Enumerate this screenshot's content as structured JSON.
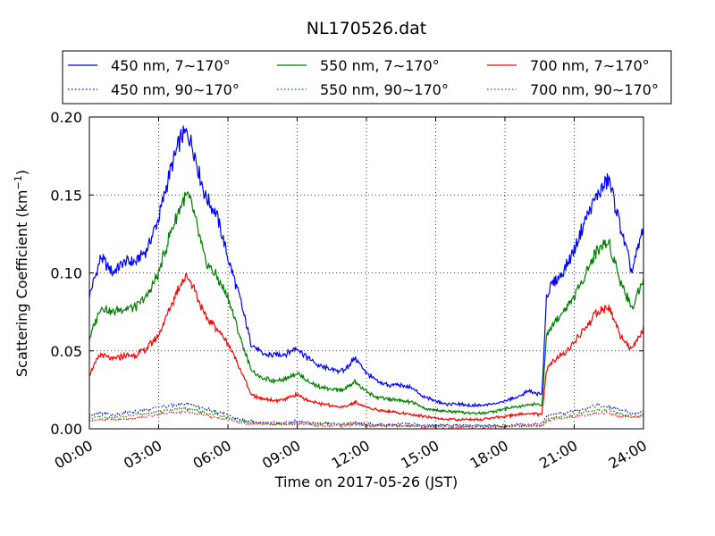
{
  "chart_data": {
    "type": "line",
    "title": "NL170526.dat",
    "xlabel": "Time on 2017-05-26 (JST)",
    "ylabel": "Scattering Coefficient (km",
    "ylabel_sup": "−1",
    "ylabel_close": ")",
    "xlim": [
      "00:00",
      "24:00"
    ],
    "ylim": [
      0.0,
      0.2
    ],
    "xticks": [
      "00:00",
      "03:00",
      "06:00",
      "09:00",
      "12:00",
      "15:00",
      "18:00",
      "21:00",
      "24:00"
    ],
    "yticks": [
      "0.00",
      "0.05",
      "0.10",
      "0.15",
      "0.20"
    ],
    "grid": true,
    "legend_position": "top (above plot, 3 columns)",
    "hours": [
      0.0,
      0.5,
      1.0,
      1.5,
      2.0,
      2.5,
      3.0,
      3.5,
      4.0,
      4.25,
      4.5,
      5.0,
      5.5,
      6.0,
      6.5,
      7.0,
      7.5,
      8.0,
      8.5,
      9.0,
      9.5,
      10.0,
      10.5,
      11.0,
      11.5,
      12.0,
      12.5,
      13.0,
      13.5,
      14.0,
      14.5,
      15.0,
      15.5,
      16.0,
      16.5,
      17.0,
      17.5,
      18.0,
      18.5,
      19.0,
      19.6,
      19.8,
      20.0,
      20.5,
      21.0,
      21.5,
      22.0,
      22.5,
      23.0,
      23.5,
      24.0
    ],
    "series": [
      {
        "name": "450 nm, 7∼170°",
        "color": "#0000ff",
        "style": "solid",
        "values": [
          0.085,
          0.11,
          0.1,
          0.107,
          0.107,
          0.115,
          0.135,
          0.165,
          0.188,
          0.19,
          0.18,
          0.15,
          0.138,
          0.11,
          0.085,
          0.055,
          0.048,
          0.047,
          0.048,
          0.052,
          0.045,
          0.04,
          0.038,
          0.037,
          0.045,
          0.036,
          0.03,
          0.028,
          0.028,
          0.026,
          0.02,
          0.018,
          0.016,
          0.016,
          0.015,
          0.015,
          0.016,
          0.018,
          0.02,
          0.024,
          0.022,
          0.085,
          0.092,
          0.1,
          0.115,
          0.135,
          0.15,
          0.16,
          0.13,
          0.1,
          0.13
        ]
      },
      {
        "name": "450 nm, 90∼170°",
        "color": "#0000ff",
        "style": "dotted",
        "values": [
          0.009,
          0.01,
          0.009,
          0.01,
          0.011,
          0.012,
          0.014,
          0.015,
          0.016,
          0.016,
          0.015,
          0.013,
          0.011,
          0.009,
          0.006,
          0.005,
          0.004,
          0.004,
          0.004,
          0.005,
          0.004,
          0.004,
          0.003,
          0.003,
          0.004,
          0.003,
          0.003,
          0.003,
          0.003,
          0.003,
          0.002,
          0.002,
          0.002,
          0.002,
          0.002,
          0.002,
          0.002,
          0.002,
          0.003,
          0.003,
          0.003,
          0.008,
          0.009,
          0.01,
          0.011,
          0.013,
          0.015,
          0.014,
          0.012,
          0.01,
          0.011
        ]
      },
      {
        "name": "550 nm, 7∼170°",
        "color": "#008000",
        "style": "solid",
        "values": [
          0.058,
          0.078,
          0.075,
          0.077,
          0.078,
          0.085,
          0.1,
          0.125,
          0.145,
          0.15,
          0.14,
          0.108,
          0.098,
          0.085,
          0.06,
          0.038,
          0.032,
          0.031,
          0.032,
          0.036,
          0.03,
          0.027,
          0.025,
          0.025,
          0.03,
          0.024,
          0.02,
          0.019,
          0.018,
          0.017,
          0.013,
          0.012,
          0.011,
          0.011,
          0.01,
          0.01,
          0.011,
          0.013,
          0.014,
          0.016,
          0.015,
          0.06,
          0.065,
          0.075,
          0.085,
          0.1,
          0.115,
          0.12,
          0.095,
          0.077,
          0.098
        ]
      },
      {
        "name": "550 nm, 90∼170°",
        "color": "#008000",
        "style": "dotted",
        "values": [
          0.007,
          0.008,
          0.007,
          0.008,
          0.009,
          0.01,
          0.011,
          0.012,
          0.013,
          0.013,
          0.012,
          0.01,
          0.009,
          0.007,
          0.005,
          0.004,
          0.003,
          0.003,
          0.003,
          0.004,
          0.003,
          0.003,
          0.003,
          0.003,
          0.003,
          0.003,
          0.002,
          0.002,
          0.002,
          0.002,
          0.002,
          0.002,
          0.002,
          0.002,
          0.002,
          0.002,
          0.002,
          0.002,
          0.002,
          0.002,
          0.002,
          0.006,
          0.007,
          0.008,
          0.009,
          0.011,
          0.012,
          0.012,
          0.01,
          0.008,
          0.009
        ]
      },
      {
        "name": "700 nm, 7∼170°",
        "color": "#ff0000",
        "style": "solid",
        "values": [
          0.035,
          0.048,
          0.044,
          0.047,
          0.047,
          0.052,
          0.06,
          0.078,
          0.095,
          0.098,
          0.092,
          0.072,
          0.065,
          0.055,
          0.04,
          0.022,
          0.019,
          0.018,
          0.019,
          0.022,
          0.018,
          0.016,
          0.015,
          0.014,
          0.017,
          0.014,
          0.012,
          0.011,
          0.01,
          0.009,
          0.008,
          0.007,
          0.006,
          0.006,
          0.006,
          0.006,
          0.007,
          0.008,
          0.009,
          0.01,
          0.009,
          0.038,
          0.042,
          0.048,
          0.055,
          0.065,
          0.075,
          0.078,
          0.06,
          0.05,
          0.065
        ]
      },
      {
        "name": "700 nm, 90∼170°",
        "color": "#ff0000",
        "style": "dotted",
        "values": [
          0.005,
          0.006,
          0.006,
          0.006,
          0.007,
          0.008,
          0.009,
          0.01,
          0.011,
          0.011,
          0.01,
          0.009,
          0.007,
          0.006,
          0.004,
          0.003,
          0.003,
          0.003,
          0.003,
          0.003,
          0.003,
          0.002,
          0.002,
          0.002,
          0.003,
          0.002,
          0.002,
          0.002,
          0.002,
          0.002,
          0.001,
          0.001,
          0.001,
          0.001,
          0.001,
          0.001,
          0.001,
          0.001,
          0.002,
          0.002,
          0.002,
          0.005,
          0.006,
          0.007,
          0.008,
          0.009,
          0.01,
          0.01,
          0.008,
          0.007,
          0.008
        ]
      }
    ]
  }
}
